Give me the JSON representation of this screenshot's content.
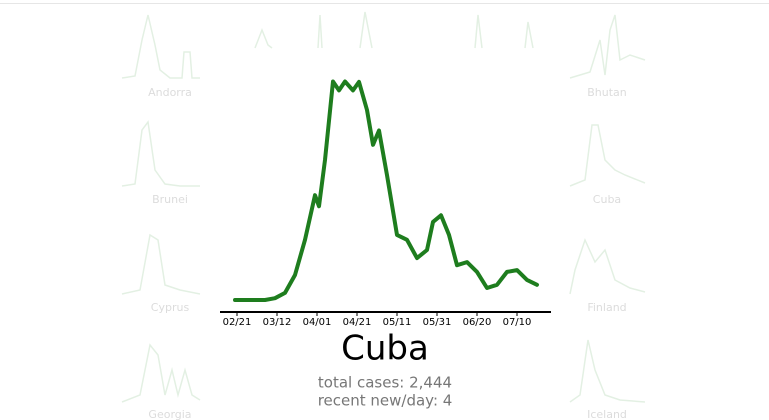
{
  "background_labels": [
    "Andorra",
    "Bhutan",
    "Brunei",
    "Cuba",
    "Cyprus",
    "Finland",
    "Georgia",
    "Iceland"
  ],
  "chart_data": {
    "type": "line",
    "title": "Cuba",
    "stats": [
      "total cases: 2,444",
      "recent new/day: 4"
    ],
    "x": [
      "02/20",
      "03/01",
      "03/06",
      "03/11",
      "03/16",
      "03/21",
      "03/26",
      "03/31",
      "04/02",
      "04/05",
      "04/09",
      "04/12",
      "04/15",
      "04/19",
      "04/22",
      "04/26",
      "04/29",
      "05/02",
      "05/06",
      "05/11",
      "05/16",
      "05/21",
      "05/26",
      "05/29",
      "06/02",
      "06/06",
      "06/10",
      "06/15",
      "06/20",
      "06/25",
      "06/30",
      "07/05",
      "07/10",
      "07/15",
      "07/20"
    ],
    "values": [
      0,
      0,
      0,
      0.4,
      1.6,
      5.6,
      13.5,
      23.5,
      21,
      31.4,
      49,
      47,
      49,
      47,
      48.9,
      42.6,
      34.8,
      38,
      28,
      14.6,
      13.5,
      9.4,
      11.2,
      17.5,
      19,
      14.6,
      7.8,
      8.5,
      6.3,
      2.7,
      3.4,
      6.3,
      6.7,
      4.5,
      3.4
    ],
    "color": "#1e7d1e",
    "ylim": [
      0,
      50
    ],
    "xticks": [
      "02/21",
      "03/12",
      "04/01",
      "04/21",
      "05/11",
      "05/31",
      "06/20",
      "07/10"
    ]
  }
}
